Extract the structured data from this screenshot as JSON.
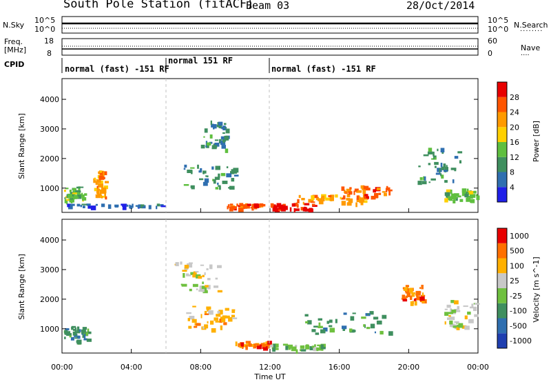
{
  "header": {
    "station": "South Pole Station (fitACF)",
    "beam": "Beam 03",
    "date": "28/Oct/2014"
  },
  "top_panels": {
    "nsky_label": "N.Sky",
    "nsky_ticks": [
      "10^5",
      "10^0"
    ],
    "nsearch_label": "N.Search",
    "nsearch_ticks": [
      "10^5",
      "10^0"
    ],
    "freq_label_1": "Freq.",
    "freq_label_2": "[MHz]",
    "freq_ticks": [
      "18",
      "8"
    ],
    "nave_label": "Nave",
    "nave_ticks": [
      "60",
      "0"
    ],
    "cpid_label": "CPID",
    "cpid_segments": [
      {
        "label": "normal (fast) -151 RF",
        "start": 0,
        "end": 6
      },
      {
        "label": "normal 151 RF",
        "start": 6,
        "end": 12
      },
      {
        "label": "normal (fast) -151 RF",
        "start": 12,
        "end": 24
      }
    ]
  },
  "chart_data": [
    {
      "type": "heatmap",
      "title": "Power",
      "xlabel": "Time UT",
      "ylabel": "Slant Range [km]",
      "xlim": [
        0,
        24
      ],
      "ylim": [
        180,
        4700
      ],
      "xticks": [
        "00:00",
        "04:00",
        "08:00",
        "12:00",
        "16:00",
        "20:00",
        "00:00"
      ],
      "yticks": [
        "1000",
        "2000",
        "3000",
        "4000"
      ],
      "colorbar_label": "Power [dB]",
      "colorbar_ticks": [
        "4",
        "8",
        "12",
        "16",
        "20",
        "24",
        "28"
      ],
      "colors": [
        "#1f1fe8",
        "#2f6fb0",
        "#3f8f5f",
        "#5fbf3f",
        "#ffd000",
        "#ff9a00",
        "#ff5500",
        "#e80000"
      ],
      "features": [
        {
          "t0": 0.1,
          "t1": 1.3,
          "r0": 600,
          "r1": 1100,
          "level": 3
        },
        {
          "t0": 1.8,
          "t1": 2.5,
          "r0": 700,
          "r1": 1600,
          "level": 5
        },
        {
          "t0": 0.2,
          "t1": 5.8,
          "r0": 400,
          "r1": 480,
          "level": 1
        },
        {
          "t0": 8.0,
          "t1": 9.5,
          "r0": 2300,
          "r1": 3300,
          "level": 2
        },
        {
          "t0": 7.0,
          "t1": 10.0,
          "r0": 1000,
          "r1": 1800,
          "level": 2
        },
        {
          "t0": 9.5,
          "t1": 11.5,
          "r0": 350,
          "r1": 500,
          "level": 6
        },
        {
          "t0": 12.0,
          "t1": 14.5,
          "r0": 300,
          "r1": 500,
          "level": 7
        },
        {
          "t0": 13.5,
          "t1": 17.5,
          "r0": 500,
          "r1": 800,
          "level": 5
        },
        {
          "t0": 16.0,
          "t1": 19.0,
          "r0": 700,
          "r1": 1100,
          "level": 6
        },
        {
          "t0": 20.5,
          "t1": 23.0,
          "r0": 1200,
          "r1": 2400,
          "level": 2
        },
        {
          "t0": 22.0,
          "t1": 23.9,
          "r0": 600,
          "r1": 1000,
          "level": 3
        }
      ]
    },
    {
      "type": "heatmap",
      "title": "Velocity",
      "xlabel": "Time UT",
      "ylabel": "Slant Range [km]",
      "xlim": [
        0,
        24
      ],
      "ylim": [
        180,
        4700
      ],
      "xticks": [
        "00:00",
        "04:00",
        "08:00",
        "12:00",
        "16:00",
        "20:00",
        "00:00"
      ],
      "yticks": [
        "1000",
        "2000",
        "3000",
        "4000"
      ],
      "colorbar_label": "Velocity [m s^-1]",
      "colorbar_ticks": [
        "1000",
        "500",
        "100",
        "25",
        "-25",
        "-100",
        "-500",
        "-1000"
      ],
      "colors": [
        "#1f3fb0",
        "#2f6fb0",
        "#3f8f5f",
        "#6fc03f",
        "#c8c8c8",
        "#ffb000",
        "#ff7000",
        "#e80000"
      ],
      "features": [
        {
          "t0": 0.1,
          "t1": 1.5,
          "r0": 600,
          "r1": 1100,
          "level": 2
        },
        {
          "t0": 6.5,
          "t1": 9.0,
          "r0": 2300,
          "r1": 3300,
          "level": 4
        },
        {
          "t0": 7.0,
          "t1": 10.0,
          "r0": 1000,
          "r1": 1800,
          "level": 5
        },
        {
          "t0": 10.0,
          "t1": 12.0,
          "r0": 400,
          "r1": 600,
          "level": 6
        },
        {
          "t0": 12.0,
          "t1": 15.0,
          "r0": 300,
          "r1": 500,
          "level": 3
        },
        {
          "t0": 14.0,
          "t1": 19.0,
          "r0": 800,
          "r1": 1600,
          "level": 2
        },
        {
          "t0": 19.5,
          "t1": 20.8,
          "r0": 1900,
          "r1": 2500,
          "level": 6
        },
        {
          "t0": 22.0,
          "t1": 23.9,
          "r0": 1000,
          "r1": 2000,
          "level": 4
        }
      ]
    }
  ],
  "footer": {
    "xlabel": "Time UT"
  }
}
